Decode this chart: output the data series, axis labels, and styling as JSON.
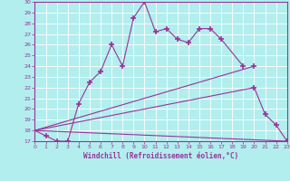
{
  "xlabel": "Windchill (Refroidissement éolien,°C)",
  "xlim": [
    0,
    23
  ],
  "ylim": [
    17,
    30
  ],
  "yticks": [
    17,
    18,
    19,
    20,
    21,
    22,
    23,
    24,
    25,
    26,
    27,
    28,
    29,
    30
  ],
  "xticks": [
    0,
    1,
    2,
    3,
    4,
    5,
    6,
    7,
    8,
    9,
    10,
    11,
    12,
    13,
    14,
    15,
    16,
    17,
    18,
    19,
    20,
    21,
    22,
    23
  ],
  "line_color": "#993399",
  "bg_color": "#b2eeee",
  "grid_color": "#ffffff",
  "s1x": [
    0,
    1,
    2,
    3,
    4,
    5,
    6,
    7,
    8,
    9,
    10,
    11,
    12,
    13,
    14,
    15,
    16,
    17,
    19
  ],
  "s1y": [
    18,
    17.5,
    17,
    17,
    20.5,
    22.5,
    23.5,
    26,
    24,
    28.5,
    30,
    27.2,
    27.5,
    26.5,
    26.2,
    27.5,
    27.5,
    26.5,
    24.0
  ],
  "s2x": [
    0,
    20,
    21,
    22,
    23
  ],
  "s2y": [
    18,
    22.0,
    19.5,
    18.5,
    17
  ],
  "s3x": [
    0,
    20
  ],
  "s3y": [
    18,
    24
  ],
  "s4x": [
    0,
    23
  ],
  "s4y": [
    18,
    17
  ]
}
